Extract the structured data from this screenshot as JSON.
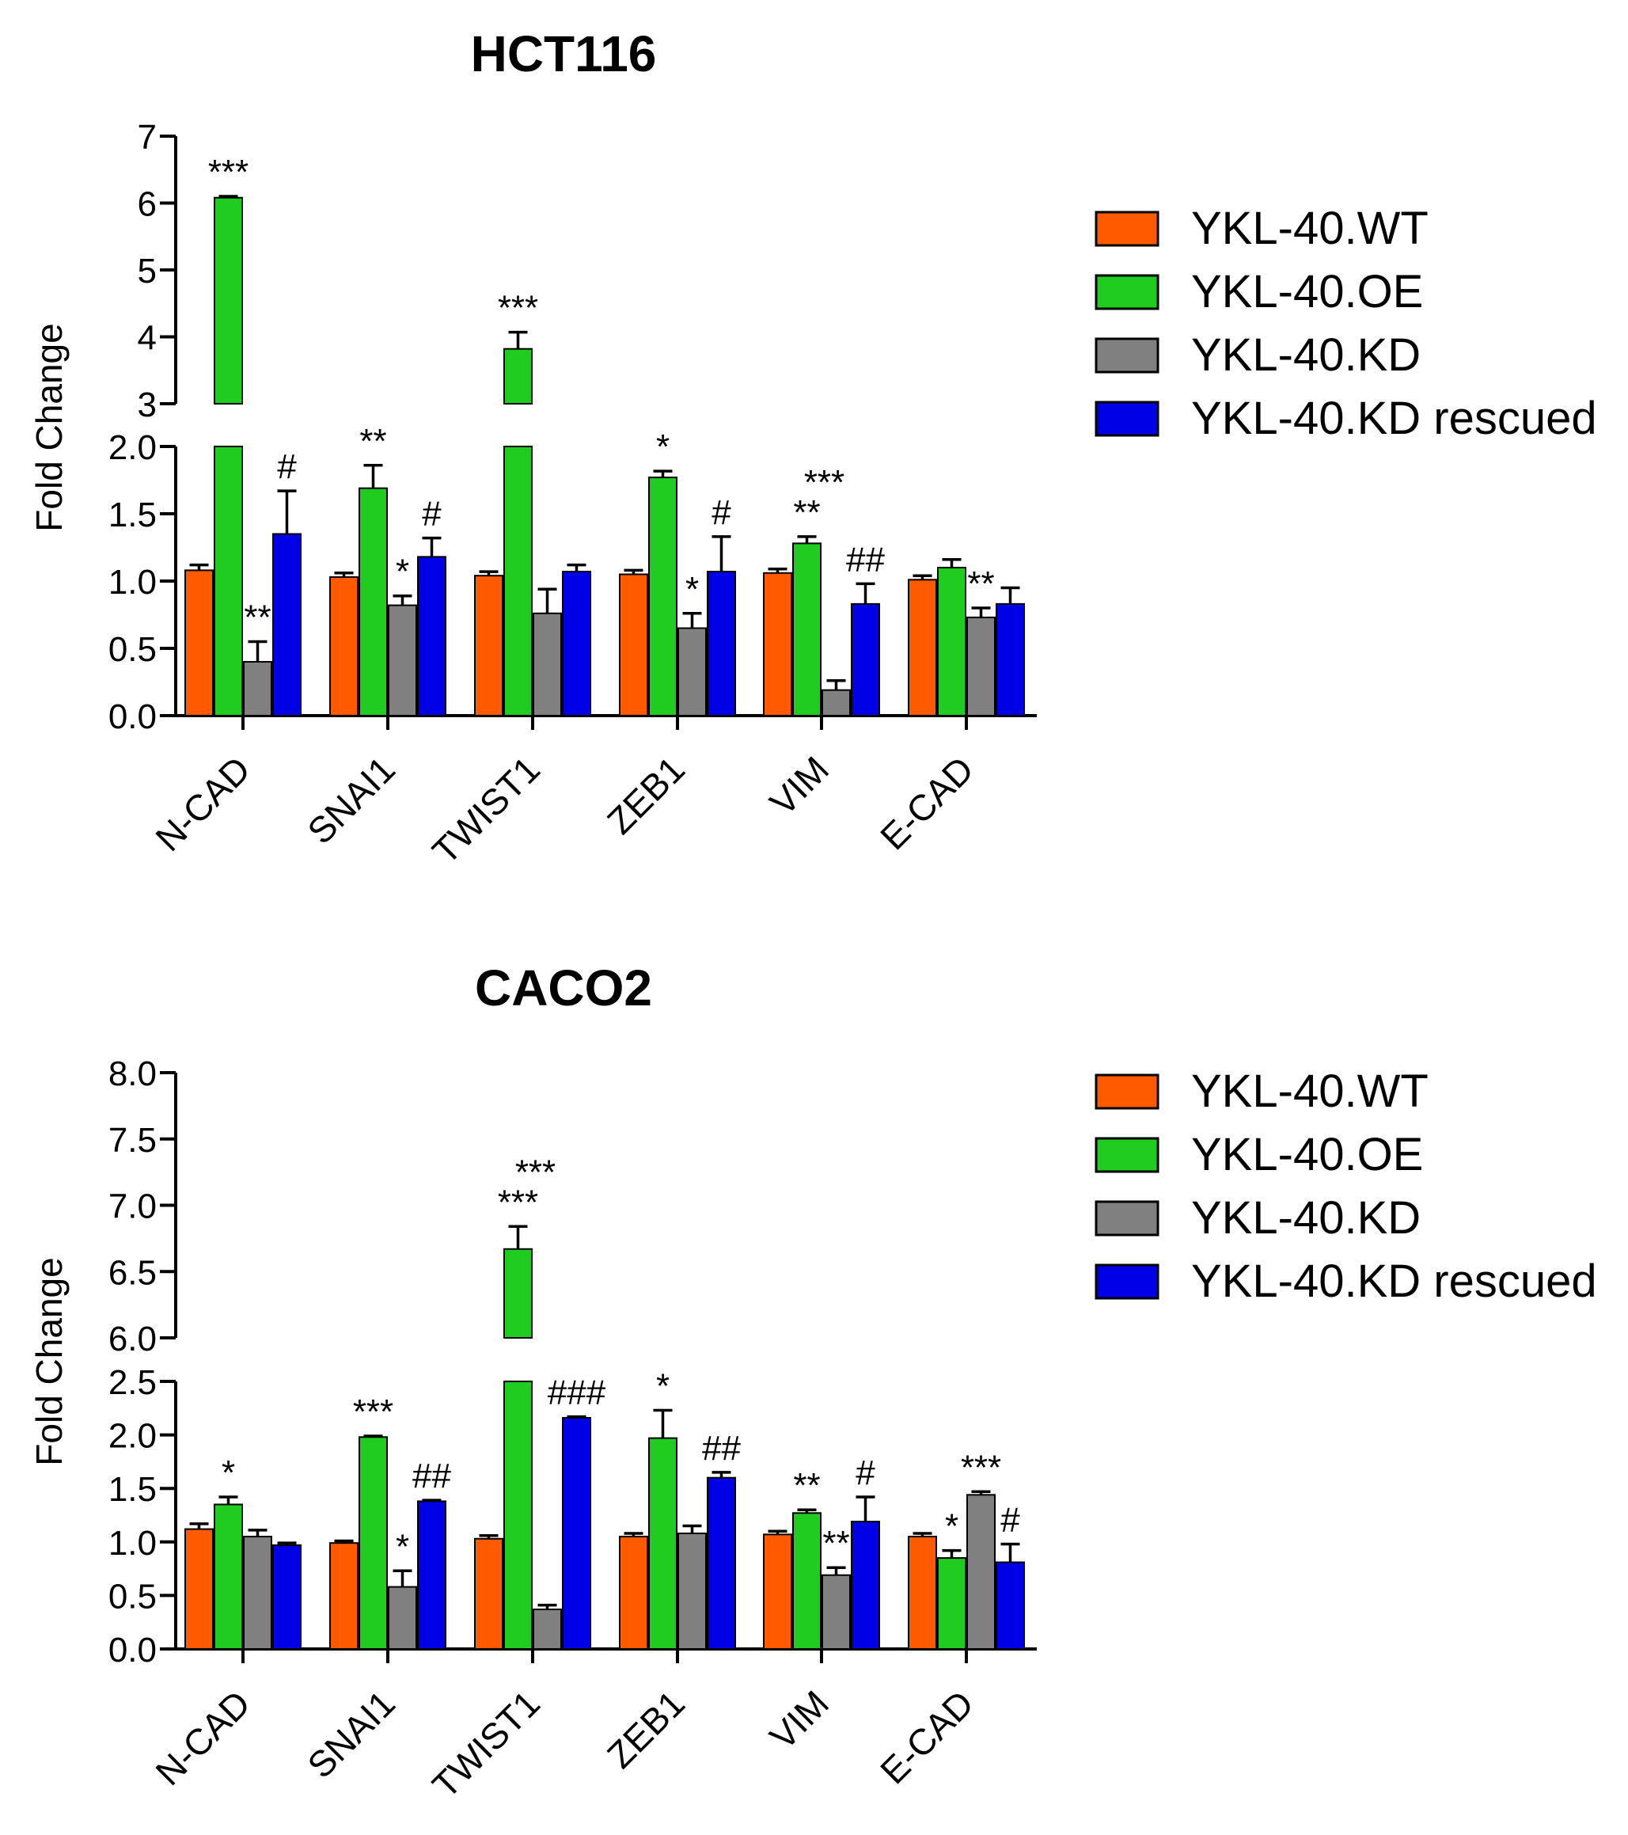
{
  "colors": {
    "YKL-40.WT": "#ff5a00",
    "YKL-40.OE": "#1fcc1f",
    "YKL-40.KD": "#808080",
    "YKL-40.KD rescued": "#0000e6"
  },
  "chart_data": [
    {
      "type": "bar",
      "title": "HCT116",
      "ylabel": "Fold Change",
      "xlabel": "",
      "categories": [
        "N-CAD",
        "SNAI1",
        "TWIST1",
        "ZEB1",
        "VIM",
        "E-CAD"
      ],
      "series": [
        {
          "name": "YKL-40.WT",
          "values": [
            1.08,
            1.03,
            1.04,
            1.05,
            1.06,
            1.01
          ],
          "errors": [
            0.04,
            0.03,
            0.03,
            0.03,
            0.03,
            0.03
          ]
        },
        {
          "name": "YKL-40.OE",
          "values": [
            6.08,
            1.69,
            3.82,
            1.77,
            1.28,
            1.1
          ],
          "errors": [
            0.02,
            0.17,
            0.25,
            0.25,
            0.05,
            0.06
          ]
        },
        {
          "name": "YKL-40.KD",
          "values": [
            0.4,
            0.82,
            0.76,
            0.65,
            0.19,
            0.73
          ],
          "errors": [
            0.15,
            0.07,
            0.18,
            0.11,
            0.07,
            0.07
          ]
        },
        {
          "name": "YKL-40.KD rescued",
          "values": [
            1.35,
            1.18,
            1.07,
            1.07,
            0.83,
            0.83
          ],
          "errors": [
            0.32,
            0.14,
            0.05,
            0.26,
            0.15,
            0.12
          ]
        }
      ],
      "broken_axis": {
        "lower_range": [
          0,
          2.0
        ],
        "upper_range": [
          3,
          7
        ]
      },
      "lower_ticks": [
        "0.0",
        "0.5",
        "1.0",
        "1.5",
        "2.0"
      ],
      "upper_ticks": [
        "3",
        "4",
        "5",
        "6",
        "7"
      ],
      "annotations": [
        {
          "category": 0,
          "series": 1,
          "text": "***"
        },
        {
          "category": 0,
          "series": 2,
          "text": "**"
        },
        {
          "category": 0,
          "series": 3,
          "text": "#"
        },
        {
          "category": 1,
          "series": 1,
          "text": "**"
        },
        {
          "category": 1,
          "series": 2,
          "text": "*"
        },
        {
          "category": 1,
          "series": 3,
          "text": "#"
        },
        {
          "category": 2,
          "series": 1,
          "text": "***"
        },
        {
          "category": 3,
          "series": 1,
          "text": "*"
        },
        {
          "category": 3,
          "series": 2,
          "text": "*"
        },
        {
          "category": 3,
          "series": 3,
          "text": "#"
        },
        {
          "category": 4,
          "series": 1,
          "text": "**"
        },
        {
          "category": 4,
          "series": 1,
          "text": "***"
        },
        {
          "category": 4,
          "series": 3,
          "text": "##"
        },
        {
          "category": 5,
          "series": 2,
          "text": "**"
        }
      ],
      "legend": {
        "position": "right",
        "entries": [
          "YKL-40.WT",
          "YKL-40.OE",
          "YKL-40.KD",
          "YKL-40.KD rescued"
        ]
      }
    },
    {
      "type": "bar",
      "title": "CACO2",
      "ylabel": "Fold Change",
      "xlabel": "",
      "categories": [
        "N-CAD",
        "SNAI1",
        "TWIST1",
        "ZEB1",
        "VIM",
        "E-CAD"
      ],
      "series": [
        {
          "name": "YKL-40.WT",
          "values": [
            1.12,
            0.99,
            1.03,
            1.05,
            1.07,
            1.05
          ],
          "errors": [
            0.05,
            0.02,
            0.03,
            0.03,
            0.03,
            0.03
          ]
        },
        {
          "name": "YKL-40.OE",
          "values": [
            1.35,
            1.98,
            6.67,
            1.97,
            1.27,
            0.85
          ],
          "errors": [
            0.07,
            0.01,
            0.17,
            0.26,
            0.03,
            0.07
          ]
        },
        {
          "name": "YKL-40.KD",
          "values": [
            1.05,
            0.58,
            0.37,
            1.08,
            0.69,
            1.44
          ],
          "errors": [
            0.06,
            0.15,
            0.04,
            0.07,
            0.07,
            0.03
          ]
        },
        {
          "name": "YKL-40.KD rescued",
          "values": [
            0.97,
            1.38,
            2.16,
            1.6,
            1.19,
            0.81
          ],
          "errors": [
            0.02,
            0.01,
            0.01,
            0.05,
            0.23,
            0.17
          ]
        }
      ],
      "broken_axis": {
        "lower_range": [
          0,
          2.5
        ],
        "upper_range": [
          6.0,
          8.0
        ]
      },
      "lower_ticks": [
        "0.0",
        "0.5",
        "1.0",
        "1.5",
        "2.0",
        "2.5"
      ],
      "upper_ticks": [
        "6.0",
        "6.5",
        "7.0",
        "7.5",
        "8.0"
      ],
      "annotations": [
        {
          "category": 0,
          "series": 1,
          "text": "*"
        },
        {
          "category": 1,
          "series": 1,
          "text": "***"
        },
        {
          "category": 1,
          "series": 2,
          "text": "*"
        },
        {
          "category": 1,
          "series": 3,
          "text": "##"
        },
        {
          "category": 2,
          "series": 1,
          "text": "***"
        },
        {
          "category": 2,
          "series": 1,
          "text": "***"
        },
        {
          "category": 2,
          "series": 3,
          "text": "###"
        },
        {
          "category": 3,
          "series": 1,
          "text": "*"
        },
        {
          "category": 3,
          "series": 3,
          "text": "##"
        },
        {
          "category": 4,
          "series": 1,
          "text": "**"
        },
        {
          "category": 4,
          "series": 2,
          "text": "**"
        },
        {
          "category": 4,
          "series": 3,
          "text": "#"
        },
        {
          "category": 5,
          "series": 1,
          "text": "*"
        },
        {
          "category": 5,
          "series": 2,
          "text": "***"
        },
        {
          "category": 5,
          "series": 3,
          "text": "#"
        }
      ],
      "legend": {
        "position": "right",
        "entries": [
          "YKL-40.WT",
          "YKL-40.OE",
          "YKL-40.KD",
          "YKL-40.KD rescued"
        ]
      }
    }
  ]
}
